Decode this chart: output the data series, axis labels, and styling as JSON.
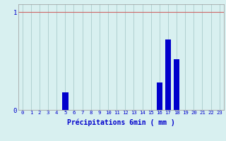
{
  "categories": [
    0,
    1,
    2,
    3,
    4,
    5,
    6,
    7,
    8,
    9,
    10,
    11,
    12,
    13,
    14,
    15,
    16,
    17,
    18,
    19,
    20,
    21,
    22,
    23
  ],
  "values": [
    0,
    0,
    0,
    0,
    0,
    0.18,
    0,
    0,
    0,
    0,
    0,
    0,
    0,
    0,
    0,
    0,
    0.28,
    0.72,
    0.52,
    0,
    0,
    0,
    0,
    0
  ],
  "bar_color": "#0000cc",
  "background_color": "#d8f0f0",
  "grid_color": "#aacccc",
  "hgrid_color": "#cc6666",
  "axis_color": "#999999",
  "text_color": "#0000cc",
  "xlabel": "Précipitations 6min ( mm )",
  "ytick_labels": [
    "0",
    "1"
  ],
  "ytick_values": [
    0,
    1
  ],
  "ylim": [
    0,
    1.08
  ],
  "xlim": [
    -0.5,
    23.5
  ]
}
